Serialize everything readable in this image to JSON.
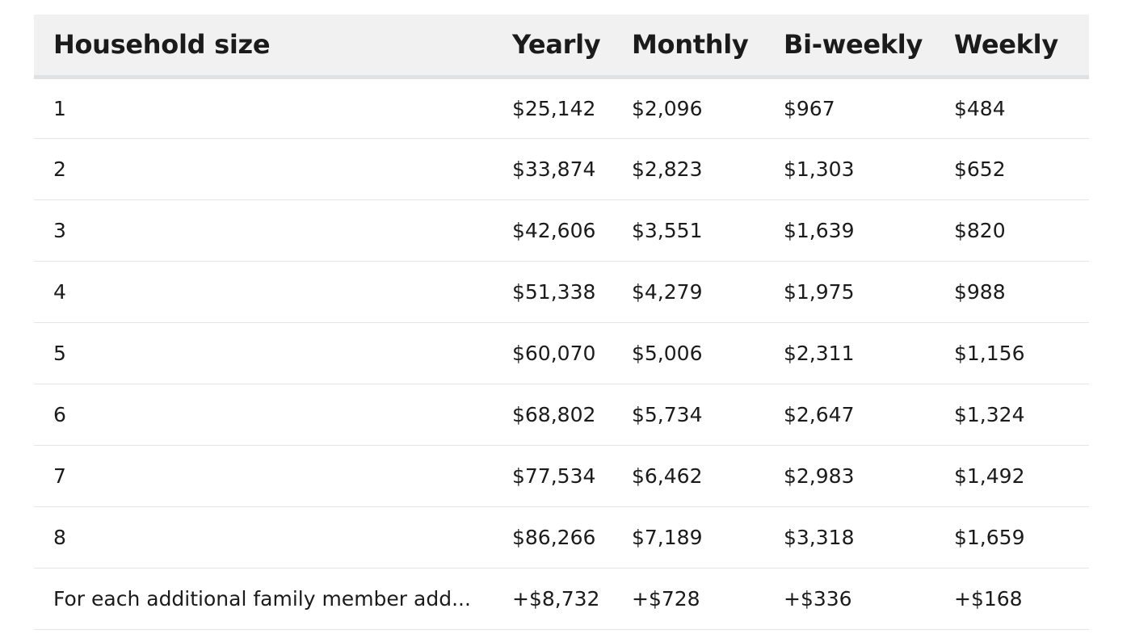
{
  "table": {
    "headers": [
      "Household size",
      "Yearly",
      "Monthly",
      "Bi-weekly",
      "Weekly"
    ],
    "rows": [
      [
        "1",
        "$25,142",
        "$2,096",
        "$967",
        "$484"
      ],
      [
        "2",
        "$33,874",
        "$2,823",
        "$1,303",
        "$652"
      ],
      [
        "3",
        "$42,606",
        "$3,551",
        "$1,639",
        "$820"
      ],
      [
        "4",
        "$51,338",
        "$4,279",
        "$1,975",
        "$988"
      ],
      [
        "5",
        "$60,070",
        "$5,006",
        "$2,311",
        "$1,156"
      ],
      [
        "6",
        "$68,802",
        "$5,734",
        "$2,647",
        "$1,324"
      ],
      [
        "7",
        "$77,534",
        "$6,462",
        "$2,983",
        "$1,492"
      ],
      [
        "8",
        "$86,266",
        "$7,189",
        "$3,318",
        "$1,659"
      ],
      [
        "For each additional family member add...",
        "+$8,732",
        "+$728",
        "+$336",
        "+$168"
      ]
    ]
  },
  "colors": {
    "header_background": "#f1f1f1",
    "header_rule": "#dfe1e2",
    "row_divider": "#e6e6e6",
    "text": "#1b1b1b"
  }
}
